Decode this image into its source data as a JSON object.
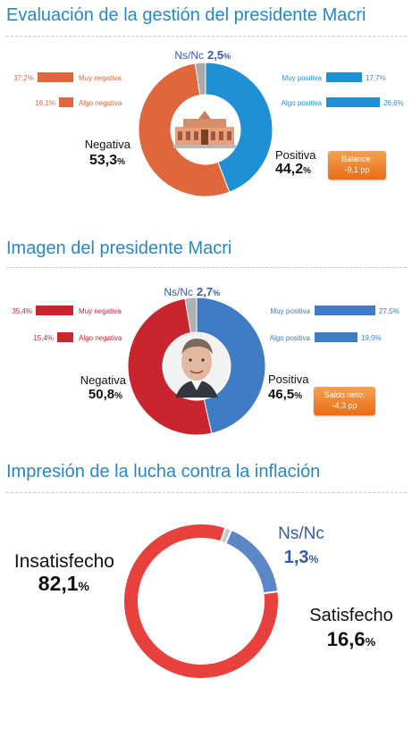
{
  "chart_data": [
    {
      "type": "pie",
      "title": "Evaluación de la gestión del presidente Macri",
      "categories": [
        "Positiva",
        "Negativa",
        "Ns/Nc"
      ],
      "values": [
        44.2,
        53.3,
        2.5
      ],
      "labels": {
        "positiva": "Positiva",
        "positiva_value": "44,2",
        "negativa": "Negativa",
        "negativa_value": "53,3",
        "nsnc": "Ns/Nc",
        "nsnc_value": "2,5",
        "pct": "%"
      },
      "breakdown": [
        {
          "name": "Muy negativa",
          "value": 37.2,
          "display": "37,2%"
        },
        {
          "name": "Algo negativa",
          "value": 16.1,
          "display": "16,1%"
        },
        {
          "name": "Muy positiva",
          "value": 17.7,
          "display": "17,7%"
        },
        {
          "name": "Algo positiva",
          "value": 26.6,
          "display": "26,6%"
        }
      ],
      "balance_label": "Balance:",
      "balance_value": "-9,1 pp",
      "colors": {
        "positive": "#1f8fd6",
        "negative": "#e0663b",
        "nsnc": "#a9a9a9"
      }
    },
    {
      "type": "pie",
      "title": "Imagen del presidente Macri",
      "categories": [
        "Positiva",
        "Negativa",
        "Ns/Nc"
      ],
      "values": [
        46.5,
        50.8,
        2.7
      ],
      "labels": {
        "positiva": "Positiva",
        "positiva_value": "46,5",
        "negativa": "Negativa",
        "negativa_value": "50,8",
        "nsnc": "Ns/Nc",
        "nsnc_value": "2,7",
        "pct": "%"
      },
      "breakdown": [
        {
          "name": "Muy negativa",
          "value": 35.4,
          "display": "35,4%"
        },
        {
          "name": "Algo negativa",
          "value": 15.4,
          "display": "15,4%"
        },
        {
          "name": "Muy positiva",
          "value": 27.5,
          "display": "27,5%"
        },
        {
          "name": "Algo positiva",
          "value": 19.0,
          "display": "19,0%"
        }
      ],
      "balance_label": "Saldo neto:",
      "balance_value": "-4,3 pp",
      "colors": {
        "positive": "#3f7cc6",
        "negative": "#c9252f",
        "nsnc": "#b0b0b0"
      }
    },
    {
      "type": "pie",
      "title": "Impresión de la lucha contra la inflación",
      "categories": [
        "Insatisfecho",
        "Satisfecho",
        "Ns/Nc"
      ],
      "values": [
        82.1,
        16.6,
        1.3
      ],
      "labels": {
        "insatisfecho": "Insatisfecho",
        "insatisfecho_value": "82,1",
        "satisfecho": "Satisfecho",
        "satisfecho_value": "16,6",
        "nsnc": "Ns/Nc",
        "nsnc_value": "1,3",
        "pct": "%"
      },
      "colors": {
        "satisfied": "#5b86c8",
        "unsatisfied": "#e8403c",
        "nsnc": "#c8c8c8",
        "nsnc_text": "#3a5aa0"
      }
    }
  ]
}
